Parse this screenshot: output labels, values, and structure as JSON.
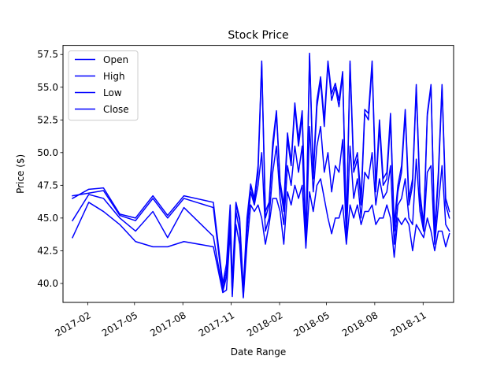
{
  "chart_data": {
    "type": "line",
    "title": "Stock Price",
    "xlabel": "Date Range",
    "ylabel": "Price ($)",
    "xlim": [
      "2016-12-16",
      "2018-12-29"
    ],
    "ylim": [
      38.55,
      58.2
    ],
    "yticks": [
      40.0,
      42.5,
      45.0,
      47.5,
      50.0,
      52.5,
      55.0,
      57.5
    ],
    "ytick_labels": [
      "40.0",
      "42.5",
      "45.0",
      "47.5",
      "50.0",
      "52.5",
      "55.0",
      "57.5"
    ],
    "xticks": [
      "2017-02-01",
      "2017-05-01",
      "2017-08-01",
      "2017-11-01",
      "2018-02-01",
      "2018-05-01",
      "2018-08-01",
      "2018-11-01"
    ],
    "xtick_labels": [
      "2017-02",
      "2017-05",
      "2017-08",
      "2017-11",
      "2018-02",
      "2018-05",
      "2018-08",
      "2018-11"
    ],
    "grid": false,
    "legend": {
      "position": "upper-left"
    },
    "line_color": "#0000ff",
    "x": [
      "2017-01-03",
      "2017-02-03",
      "2017-03-03",
      "2017-04-03",
      "2017-05-03",
      "2017-06-05",
      "2017-07-03",
      "2017-08-03",
      "2017-09-28",
      "2017-10-16",
      "2017-10-23",
      "2017-10-30",
      "2017-11-03",
      "2017-11-10",
      "2017-11-17",
      "2017-11-24",
      "2017-12-01",
      "2017-12-08",
      "2017-12-15",
      "2017-12-22",
      "2017-12-29",
      "2018-01-05",
      "2018-01-12",
      "2018-01-19",
      "2018-01-26",
      "2018-02-02",
      "2018-02-09",
      "2018-02-16",
      "2018-02-23",
      "2018-03-02",
      "2018-03-09",
      "2018-03-16",
      "2018-03-23",
      "2018-03-30",
      "2018-04-06",
      "2018-04-13",
      "2018-04-20",
      "2018-04-27",
      "2018-05-04",
      "2018-05-11",
      "2018-05-18",
      "2018-05-25",
      "2018-06-01",
      "2018-06-08",
      "2018-06-15",
      "2018-06-22",
      "2018-06-29",
      "2018-07-06",
      "2018-07-13",
      "2018-07-20",
      "2018-07-27",
      "2018-08-03",
      "2018-08-10",
      "2018-08-17",
      "2018-08-24",
      "2018-08-31",
      "2018-09-07",
      "2018-09-14",
      "2018-09-21",
      "2018-09-28",
      "2018-10-05",
      "2018-10-12",
      "2018-10-19",
      "2018-10-26",
      "2018-11-02",
      "2018-11-09",
      "2018-11-16",
      "2018-11-23",
      "2018-11-30",
      "2018-12-07",
      "2018-12-14",
      "2018-12-21"
    ],
    "series": [
      {
        "name": "Open",
        "values": [
          46.7,
          46.9,
          47.1,
          45.2,
          44.8,
          46.5,
          45.0,
          46.5,
          45.8,
          39.6,
          41.0,
          45.6,
          39.5,
          46.0,
          44.8,
          39.2,
          44.5,
          47.5,
          46.2,
          48.5,
          56.8,
          45.0,
          46.0,
          50.2,
          53.0,
          47.5,
          45.5,
          51.0,
          49.0,
          53.5,
          50.5,
          52.8,
          43.0,
          57.4,
          48.0,
          53.5,
          55.5,
          52.0,
          56.8,
          54.0,
          55.0,
          53.5,
          56.0,
          44.0,
          56.8,
          48.5,
          49.5,
          46.0,
          53.0,
          52.5,
          56.7,
          47.0,
          52.0,
          47.5,
          48.0,
          52.5,
          44.0,
          47.0,
          48.5,
          53.0,
          46.0,
          47.5,
          55.0,
          46.5,
          44.0,
          52.8,
          55.0,
          43.5,
          48.0,
          55.0,
          46.0,
          45.0
        ]
      },
      {
        "name": "High",
        "values": [
          46.5,
          47.2,
          47.3,
          45.3,
          45.0,
          46.7,
          45.2,
          46.7,
          46.2,
          40.0,
          41.5,
          46.0,
          40.0,
          46.2,
          45.0,
          39.6,
          45.0,
          47.6,
          46.5,
          49.0,
          57.0,
          45.5,
          46.2,
          50.8,
          53.2,
          47.8,
          46.0,
          51.5,
          49.3,
          53.8,
          51.0,
          53.2,
          43.5,
          57.6,
          48.5,
          54.0,
          55.8,
          52.5,
          57.0,
          54.5,
          55.3,
          54.0,
          56.2,
          44.5,
          57.0,
          49.0,
          50.0,
          46.5,
          53.3,
          53.0,
          57.0,
          47.5,
          52.5,
          48.0,
          48.5,
          53.0,
          44.5,
          47.5,
          49.0,
          53.3,
          46.5,
          48.0,
          55.2,
          47.0,
          44.5,
          53.0,
          55.2,
          44.0,
          48.5,
          55.2,
          46.5,
          45.5
        ]
      },
      {
        "name": "Low",
        "values": [
          43.5,
          46.2,
          45.5,
          44.5,
          43.2,
          42.8,
          42.8,
          43.2,
          42.8,
          39.3,
          39.5,
          44.0,
          39.0,
          44.5,
          43.0,
          38.9,
          43.0,
          46.0,
          45.5,
          46.0,
          45.0,
          43.0,
          44.5,
          46.5,
          46.5,
          45.5,
          43.0,
          47.0,
          46.0,
          47.5,
          46.5,
          47.5,
          42.7,
          47.0,
          45.5,
          47.5,
          48.0,
          46.5,
          45.0,
          43.8,
          45.0,
          45.0,
          46.0,
          43.0,
          46.0,
          45.0,
          46.0,
          44.5,
          45.5,
          45.5,
          46.0,
          44.5,
          45.0,
          45.0,
          46.0,
          45.0,
          42.0,
          45.0,
          44.5,
          45.0,
          44.5,
          42.5,
          44.5,
          44.0,
          43.5,
          45.0,
          44.0,
          42.5,
          44.0,
          44.0,
          42.8,
          43.8
        ]
      },
      {
        "name": "Close",
        "values": [
          44.8,
          46.8,
          46.5,
          45.0,
          44.0,
          45.5,
          43.5,
          45.8,
          43.6,
          39.4,
          40.5,
          45.0,
          39.2,
          45.5,
          44.0,
          39.0,
          44.0,
          47.0,
          46.0,
          47.5,
          50.0,
          44.0,
          45.0,
          48.5,
          50.5,
          46.5,
          44.5,
          49.0,
          47.5,
          50.5,
          48.5,
          50.5,
          42.9,
          52.0,
          47.0,
          50.5,
          52.0,
          48.5,
          50.0,
          47.0,
          49.0,
          48.5,
          51.0,
          43.5,
          50.5,
          46.5,
          48.0,
          45.0,
          48.5,
          48.0,
          50.0,
          46.0,
          48.0,
          46.5,
          47.0,
          49.0,
          43.0,
          46.0,
          46.5,
          48.0,
          45.0,
          44.5,
          49.5,
          45.5,
          44.0,
          48.5,
          49.0,
          43.0,
          46.0,
          49.0,
          44.5,
          44.0
        ]
      }
    ]
  }
}
